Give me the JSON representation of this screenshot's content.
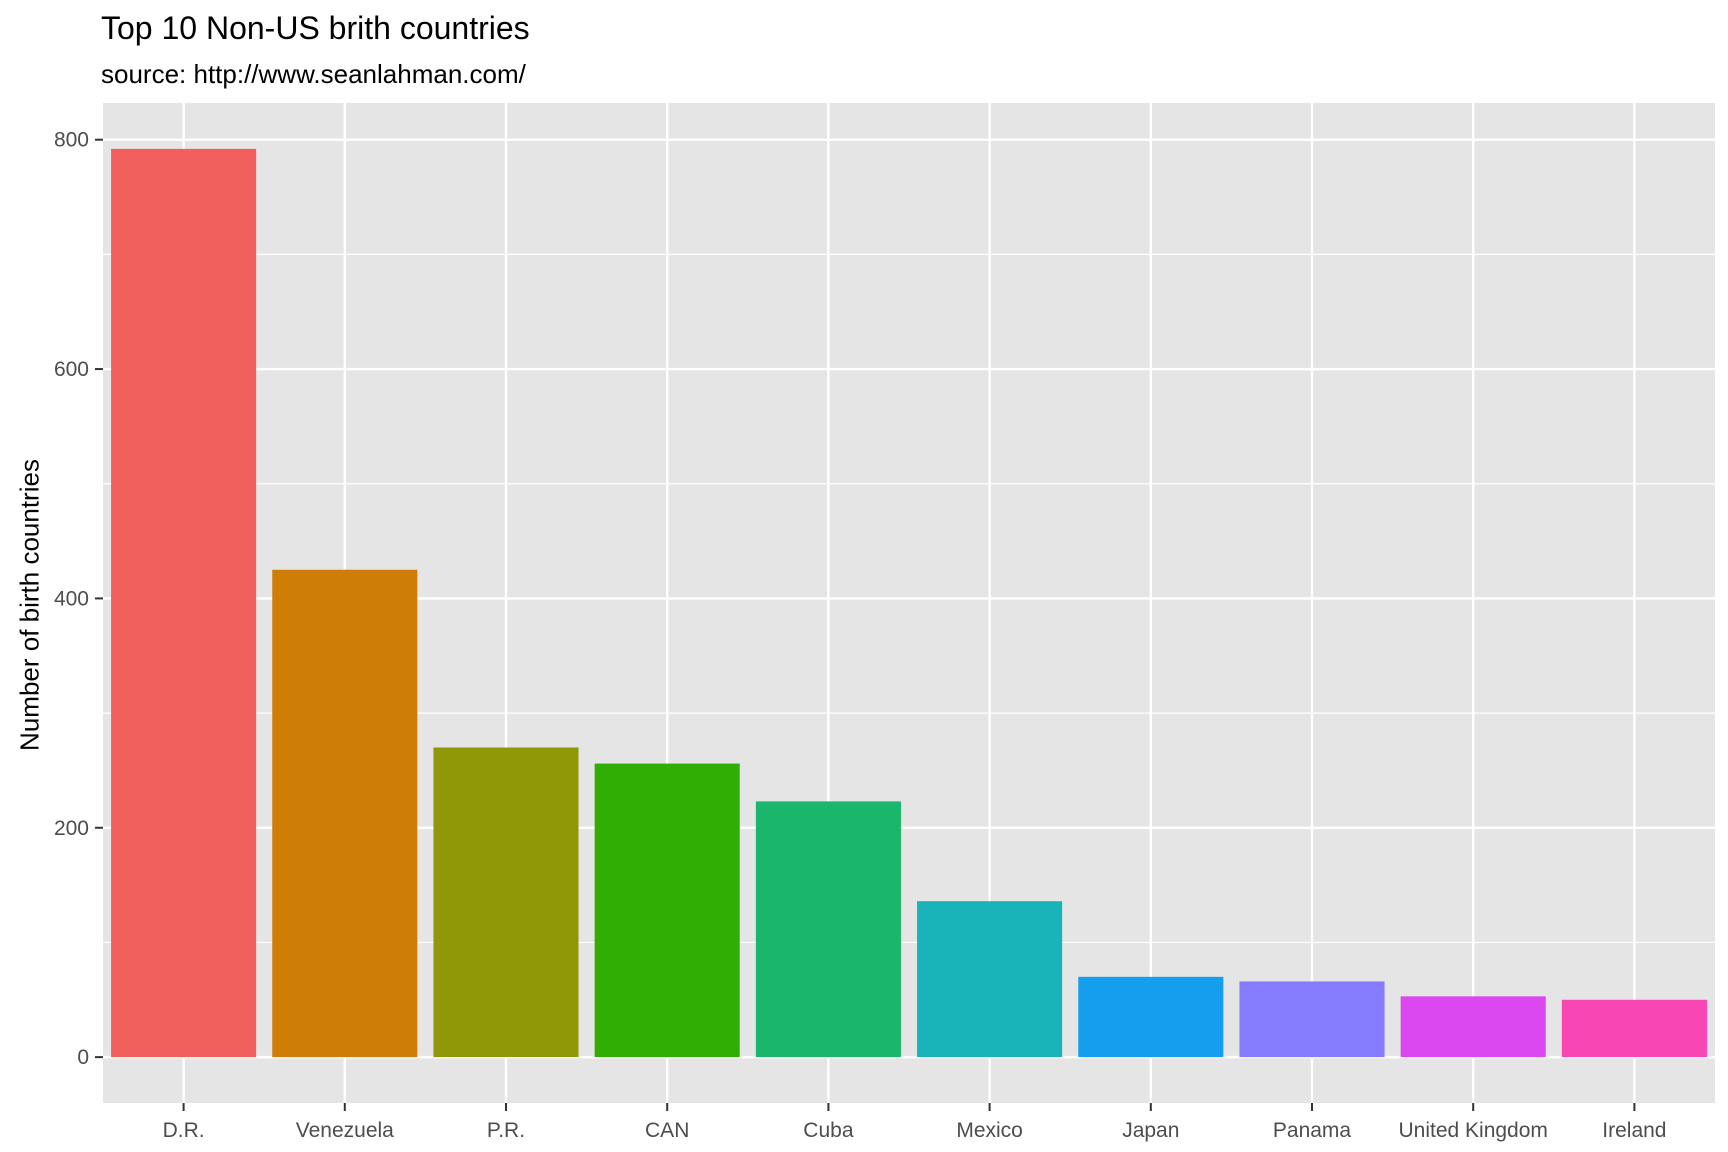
{
  "chart_data": {
    "type": "bar",
    "title": "Top 10 Non-US brith countries",
    "subtitle": "source: http://www.seanlahman.com/",
    "xlabel": "",
    "ylabel": "Number of birth countries",
    "categories": [
      "D.R.",
      "Venezuela",
      "P.R.",
      "CAN",
      "Cuba",
      "Mexico",
      "Japan",
      "Panama",
      "United Kingdom",
      "Ireland"
    ],
    "values": [
      792,
      425,
      270,
      256,
      223,
      136,
      70,
      66,
      53,
      50
    ],
    "colors": [
      "#F8766D",
      "#D39200",
      "#93AA00",
      "#00BA38",
      "#00C19F",
      "#00B9E3",
      "#619CFF",
      "#DB72FB",
      "#FF61C3",
      "#FF61C3"
    ],
    "bar_colors_rendered": [
      "#F2605E",
      "#CE7E06",
      "#909807",
      "#30AE04",
      "#1AB66B",
      "#18B4BA",
      "#169EEE",
      "#847BFD",
      "#DC48F0",
      "#F946B5"
    ],
    "yticks": [
      0,
      200,
      400,
      600,
      800
    ],
    "ylim": [
      -40,
      832
    ],
    "grid": true,
    "legend": "none",
    "panel_background": "#E5E5E5",
    "grid_color": "#FFFFFF"
  }
}
